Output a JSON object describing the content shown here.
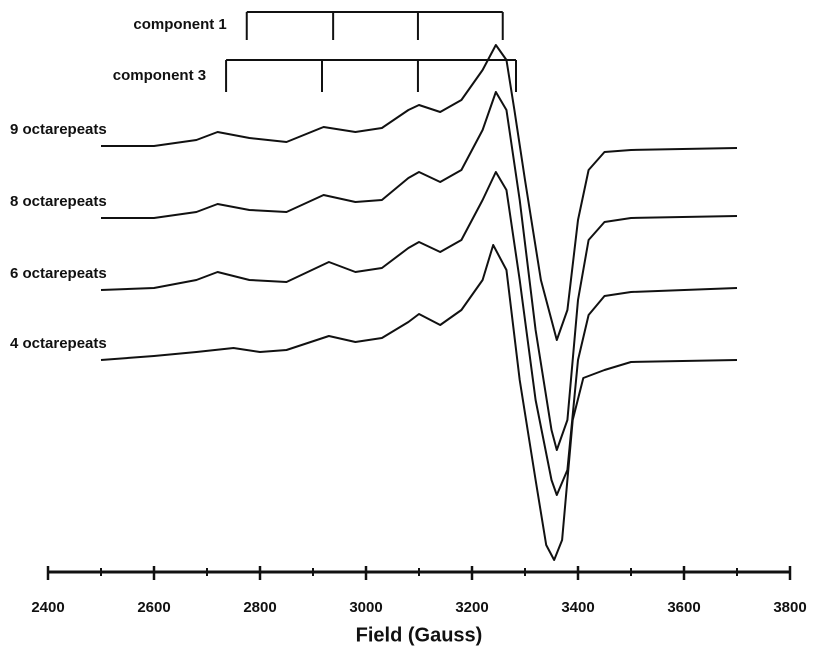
{
  "chart_data": {
    "type": "line",
    "x_label": "Field (Gauss)",
    "xlim": [
      2400,
      3800
    ],
    "xticks": [
      2400,
      2600,
      2800,
      3000,
      3200,
      3400,
      3600,
      3800
    ],
    "xminor": [
      2500,
      2700,
      2900,
      3100,
      3300,
      3500,
      3700
    ],
    "ylim": [
      0,
      550
    ],
    "color": "#111111",
    "components": [
      {
        "label": "component 1",
        "positions": [
          2775,
          2938,
          3098,
          3258
        ]
      },
      {
        "label": "component 3",
        "positions": [
          2736,
          2917,
          3098,
          3283
        ]
      }
    ],
    "series": [
      {
        "name": "9 octarepeats",
        "x": [
          2500,
          2600,
          2680,
          2720,
          2780,
          2850,
          2920,
          2980,
          3030,
          3080,
          3100,
          3140,
          3180,
          3220,
          3245,
          3265,
          3280,
          3300,
          3330,
          3360,
          3380,
          3400,
          3420,
          3450,
          3500,
          3700
        ],
        "values": [
          426,
          426,
          432,
          440,
          434,
          430,
          445,
          440,
          444,
          462,
          467,
          460,
          472,
          502,
          527,
          512,
          462,
          392,
          292,
          232,
          262,
          352,
          402,
          420,
          422,
          424
        ]
      },
      {
        "name": "8 octarepeats",
        "x": [
          2500,
          2600,
          2680,
          2720,
          2780,
          2850,
          2920,
          2980,
          3030,
          3080,
          3100,
          3140,
          3180,
          3220,
          3245,
          3265,
          3290,
          3320,
          3350,
          3360,
          3380,
          3400,
          3420,
          3450,
          3500,
          3700
        ],
        "values": [
          354,
          354,
          360,
          368,
          362,
          360,
          377,
          370,
          372,
          394,
          400,
          390,
          402,
          442,
          480,
          462,
          372,
          242,
          142,
          122,
          152,
          272,
          332,
          350,
          354,
          356
        ]
      },
      {
        "name": "6 octarepeats",
        "x": [
          2500,
          2600,
          2680,
          2720,
          2780,
          2850,
          2930,
          2980,
          3030,
          3080,
          3100,
          3140,
          3180,
          3220,
          3245,
          3265,
          3290,
          3320,
          3350,
          3360,
          3380,
          3400,
          3420,
          3450,
          3500,
          3700
        ],
        "values": [
          282,
          284,
          292,
          300,
          292,
          290,
          310,
          300,
          304,
          324,
          330,
          320,
          332,
          372,
          400,
          382,
          292,
          172,
          92,
          77,
          102,
          212,
          257,
          276,
          280,
          284
        ]
      },
      {
        "name": "4 octarepeats",
        "x": [
          2500,
          2600,
          2680,
          2750,
          2800,
          2850,
          2930,
          2980,
          3030,
          3080,
          3100,
          3140,
          3180,
          3220,
          3240,
          3265,
          3290,
          3320,
          3340,
          3355,
          3370,
          3390,
          3410,
          3450,
          3500,
          3700
        ],
        "values": [
          212,
          216,
          220,
          224,
          220,
          222,
          236,
          230,
          234,
          250,
          258,
          247,
          262,
          292,
          327,
          302,
          192,
          92,
          27,
          12,
          32,
          152,
          194,
          202,
          210,
          212
        ]
      }
    ]
  }
}
